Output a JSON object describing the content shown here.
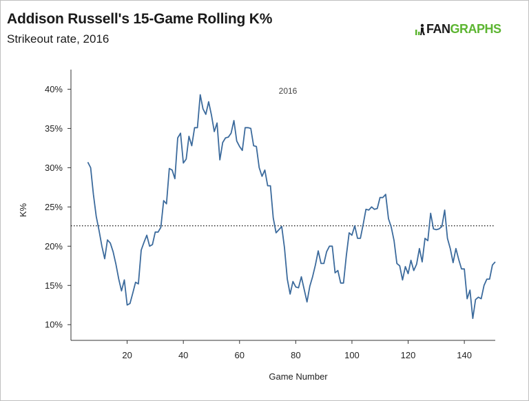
{
  "header": {
    "title": "Addison Russell's 15-Game Rolling K%",
    "subtitle": "Strikeout rate, 2016"
  },
  "brand": {
    "fan": "FAN",
    "graphs": "GRAPHS",
    "fan_color": "#1a1a1a",
    "graphs_color": "#5cb531",
    "icon": "fangraphs-player-icon"
  },
  "chart_data": {
    "type": "line",
    "title": "",
    "annotation": "2016",
    "xlabel": "Game Number",
    "ylabel": "K%",
    "xlim": [
      0,
      151
    ],
    "ylim": [
      0.08,
      0.425
    ],
    "x_ticks": [
      20,
      40,
      60,
      80,
      100,
      120,
      140
    ],
    "y_ticks": [
      0.1,
      0.15,
      0.2,
      0.25,
      0.3,
      0.35,
      0.4
    ],
    "y_tick_labels": [
      "10%",
      "15%",
      "20%",
      "25%",
      "30%",
      "35%",
      "40%"
    ],
    "grid": false,
    "legend": "none",
    "line_color": "#3b6a9c",
    "reference_line": {
      "value": 0.226,
      "style": "dotted",
      "color": "#222222"
    },
    "series": [
      {
        "x": [
          6,
          7,
          8,
          9,
          10,
          11,
          12,
          13,
          14,
          15,
          16,
          17,
          18,
          19,
          20,
          21,
          22,
          23,
          24,
          25,
          26,
          27,
          28,
          29,
          30,
          31,
          32,
          33,
          34,
          35,
          36,
          37,
          38,
          39,
          40,
          41,
          42,
          43,
          44,
          45,
          46,
          47,
          48,
          49,
          50,
          51,
          52,
          53,
          54,
          55,
          56,
          57,
          58,
          59,
          60,
          61,
          62,
          63,
          64,
          65,
          66,
          67,
          68,
          69,
          70,
          71,
          72,
          73,
          74,
          75,
          76,
          77,
          78,
          79,
          80,
          81,
          82,
          83,
          84,
          85,
          86,
          87,
          88,
          89,
          90,
          91,
          92,
          93,
          94,
          95,
          96,
          97,
          98,
          99,
          100,
          101,
          102,
          103,
          104,
          105,
          106,
          107,
          108,
          109,
          110,
          111,
          112,
          113,
          114,
          115,
          116,
          117,
          118,
          119,
          120,
          121,
          122,
          123,
          124,
          125,
          126,
          127,
          128,
          129,
          130,
          131,
          132,
          133,
          134,
          135,
          136,
          137,
          138,
          139,
          140,
          141,
          142,
          143,
          144,
          145,
          146,
          147,
          148,
          149,
          150,
          151
        ],
        "values": [
          0.307,
          0.3,
          0.266,
          0.238,
          0.22,
          0.2,
          0.184,
          0.208,
          0.204,
          0.193,
          0.177,
          0.158,
          0.143,
          0.157,
          0.125,
          0.127,
          0.14,
          0.154,
          0.152,
          0.195,
          0.205,
          0.214,
          0.2,
          0.202,
          0.218,
          0.218,
          0.224,
          0.258,
          0.254,
          0.299,
          0.297,
          0.286,
          0.338,
          0.344,
          0.306,
          0.311,
          0.34,
          0.328,
          0.351,
          0.351,
          0.393,
          0.375,
          0.368,
          0.384,
          0.367,
          0.346,
          0.357,
          0.31,
          0.332,
          0.338,
          0.339,
          0.344,
          0.36,
          0.334,
          0.327,
          0.322,
          0.351,
          0.351,
          0.35,
          0.328,
          0.327,
          0.3,
          0.289,
          0.297,
          0.277,
          0.277,
          0.236,
          0.217,
          0.221,
          0.225,
          0.198,
          0.158,
          0.139,
          0.155,
          0.148,
          0.147,
          0.161,
          0.145,
          0.129,
          0.149,
          0.161,
          0.176,
          0.194,
          0.178,
          0.178,
          0.193,
          0.2,
          0.2,
          0.166,
          0.169,
          0.153,
          0.153,
          0.188,
          0.217,
          0.214,
          0.226,
          0.21,
          0.21,
          0.228,
          0.247,
          0.246,
          0.25,
          0.247,
          0.248,
          0.262,
          0.262,
          0.266,
          0.235,
          0.224,
          0.207,
          0.178,
          0.175,
          0.157,
          0.174,
          0.165,
          0.182,
          0.169,
          0.177,
          0.197,
          0.18,
          0.21,
          0.207,
          0.242,
          0.222,
          0.221,
          0.222,
          0.225,
          0.246,
          0.21,
          0.197,
          0.179,
          0.197,
          0.183,
          0.171,
          0.171,
          0.133,
          0.144,
          0.108,
          0.132,
          0.135,
          0.133,
          0.15,
          0.158,
          0.158,
          0.176,
          0.18
        ]
      }
    ]
  }
}
